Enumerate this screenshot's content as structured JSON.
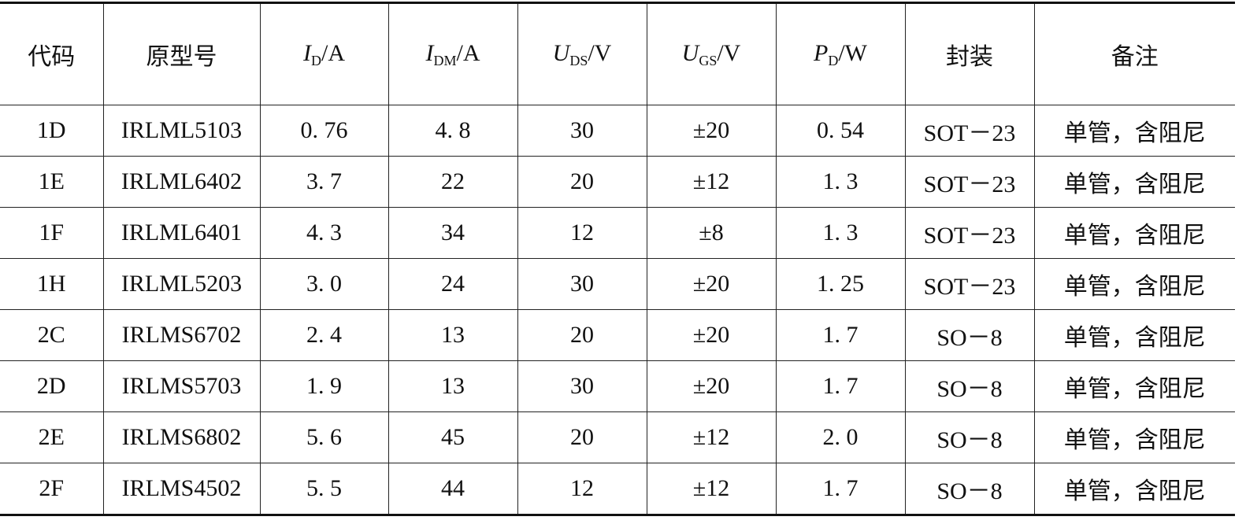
{
  "table": {
    "header": [
      "代码",
      "原型号",
      {
        "symbol": "I",
        "sub": "D",
        "unit": "/A"
      },
      {
        "symbol": "I",
        "sub": "DM",
        "unit": "/A"
      },
      {
        "symbol": "U",
        "sub": "DS",
        "unit": "/V"
      },
      {
        "symbol": "U",
        "sub": "GS",
        "unit": "/V"
      },
      {
        "symbol": "P",
        "sub": "D",
        "unit": "/W"
      },
      "封装",
      "备注"
    ],
    "rows": [
      [
        "1D",
        "IRLML5103",
        "0. 76",
        "4. 8",
        "30",
        "±20",
        "0. 54",
        "SOT－23",
        "单管，含阻尼"
      ],
      [
        "1E",
        "IRLML6402",
        "3. 7",
        "22",
        "20",
        "±12",
        "1. 3",
        "SOT－23",
        "单管，含阻尼"
      ],
      [
        "1F",
        "IRLML6401",
        "4. 3",
        "34",
        "12",
        "±8",
        "1. 3",
        "SOT－23",
        "单管，含阻尼"
      ],
      [
        "1H",
        "IRLML5203",
        "3. 0",
        "24",
        "30",
        "±20",
        "1. 25",
        "SOT－23",
        "单管，含阻尼"
      ],
      [
        "2C",
        "IRLMS6702",
        "2. 4",
        "13",
        "20",
        "±20",
        "1. 7",
        "SO－8",
        "单管，含阻尼"
      ],
      [
        "2D",
        "IRLMS5703",
        "1. 9",
        "13",
        "30",
        "±20",
        "1. 7",
        "SO－8",
        "单管，含阻尼"
      ],
      [
        "2E",
        "IRLMS6802",
        "5. 6",
        "45",
        "20",
        "±12",
        "2. 0",
        "SO－8",
        "单管，含阻尼"
      ],
      [
        "2F",
        "IRLMS4502",
        "5. 5",
        "44",
        "12",
        "±12",
        "1. 7",
        "SO－8",
        "单管，含阻尼"
      ]
    ]
  }
}
